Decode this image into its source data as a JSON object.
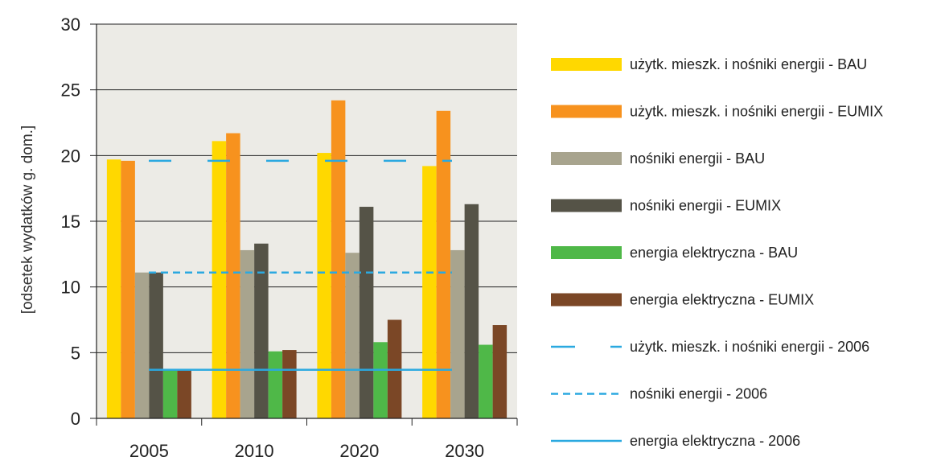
{
  "chart_data": {
    "type": "bar",
    "categories": [
      "2005",
      "2010",
      "2020",
      "2030"
    ],
    "ylabel": "[odsetek wydatków g. dom.]",
    "xlabel": "",
    "ylim": [
      0,
      30
    ],
    "yticks": [
      0,
      5,
      10,
      15,
      20,
      25,
      30
    ],
    "grid": true,
    "legend_position": "right",
    "series": [
      {
        "name": "użytk. mieszk. i nośniki energii - BAU",
        "color": "#FFD800",
        "values": [
          19.7,
          21.1,
          20.2,
          19.2
        ]
      },
      {
        "name": "użytk. mieszk. i nośniki energii - EUMIX",
        "color": "#F7921E",
        "values": [
          19.6,
          21.7,
          24.2,
          23.4
        ]
      },
      {
        "name": "nośniki energii - BAU",
        "color": "#A8A48E",
        "values": [
          11.1,
          12.8,
          12.6,
          12.8
        ]
      },
      {
        "name": "nośniki energii - EUMIX",
        "color": "#555347",
        "values": [
          11.1,
          13.3,
          16.1,
          16.3
        ]
      },
      {
        "name": "energia elektryczna - BAU",
        "color": "#4FB848",
        "values": [
          3.7,
          5.1,
          5.8,
          5.6
        ]
      },
      {
        "name": "energia elektryczna - EUMIX",
        "color": "#7B4726",
        "values": [
          3.7,
          5.2,
          7.5,
          7.1
        ]
      }
    ],
    "reference_lines": [
      {
        "name": "użytk. mieszk. i nośniki energii - 2006",
        "value": 19.6,
        "style": "longdash",
        "color": "#2BA9E0"
      },
      {
        "name": "nośniki energii - 2006",
        "value": 11.1,
        "style": "dash",
        "color": "#2BA9E0"
      },
      {
        "name": "energia elektryczna - 2006",
        "value": 3.7,
        "style": "solid",
        "color": "#2BA9E0"
      }
    ],
    "plot_background": "#ECEBE6",
    "grid_color": "#222222"
  }
}
